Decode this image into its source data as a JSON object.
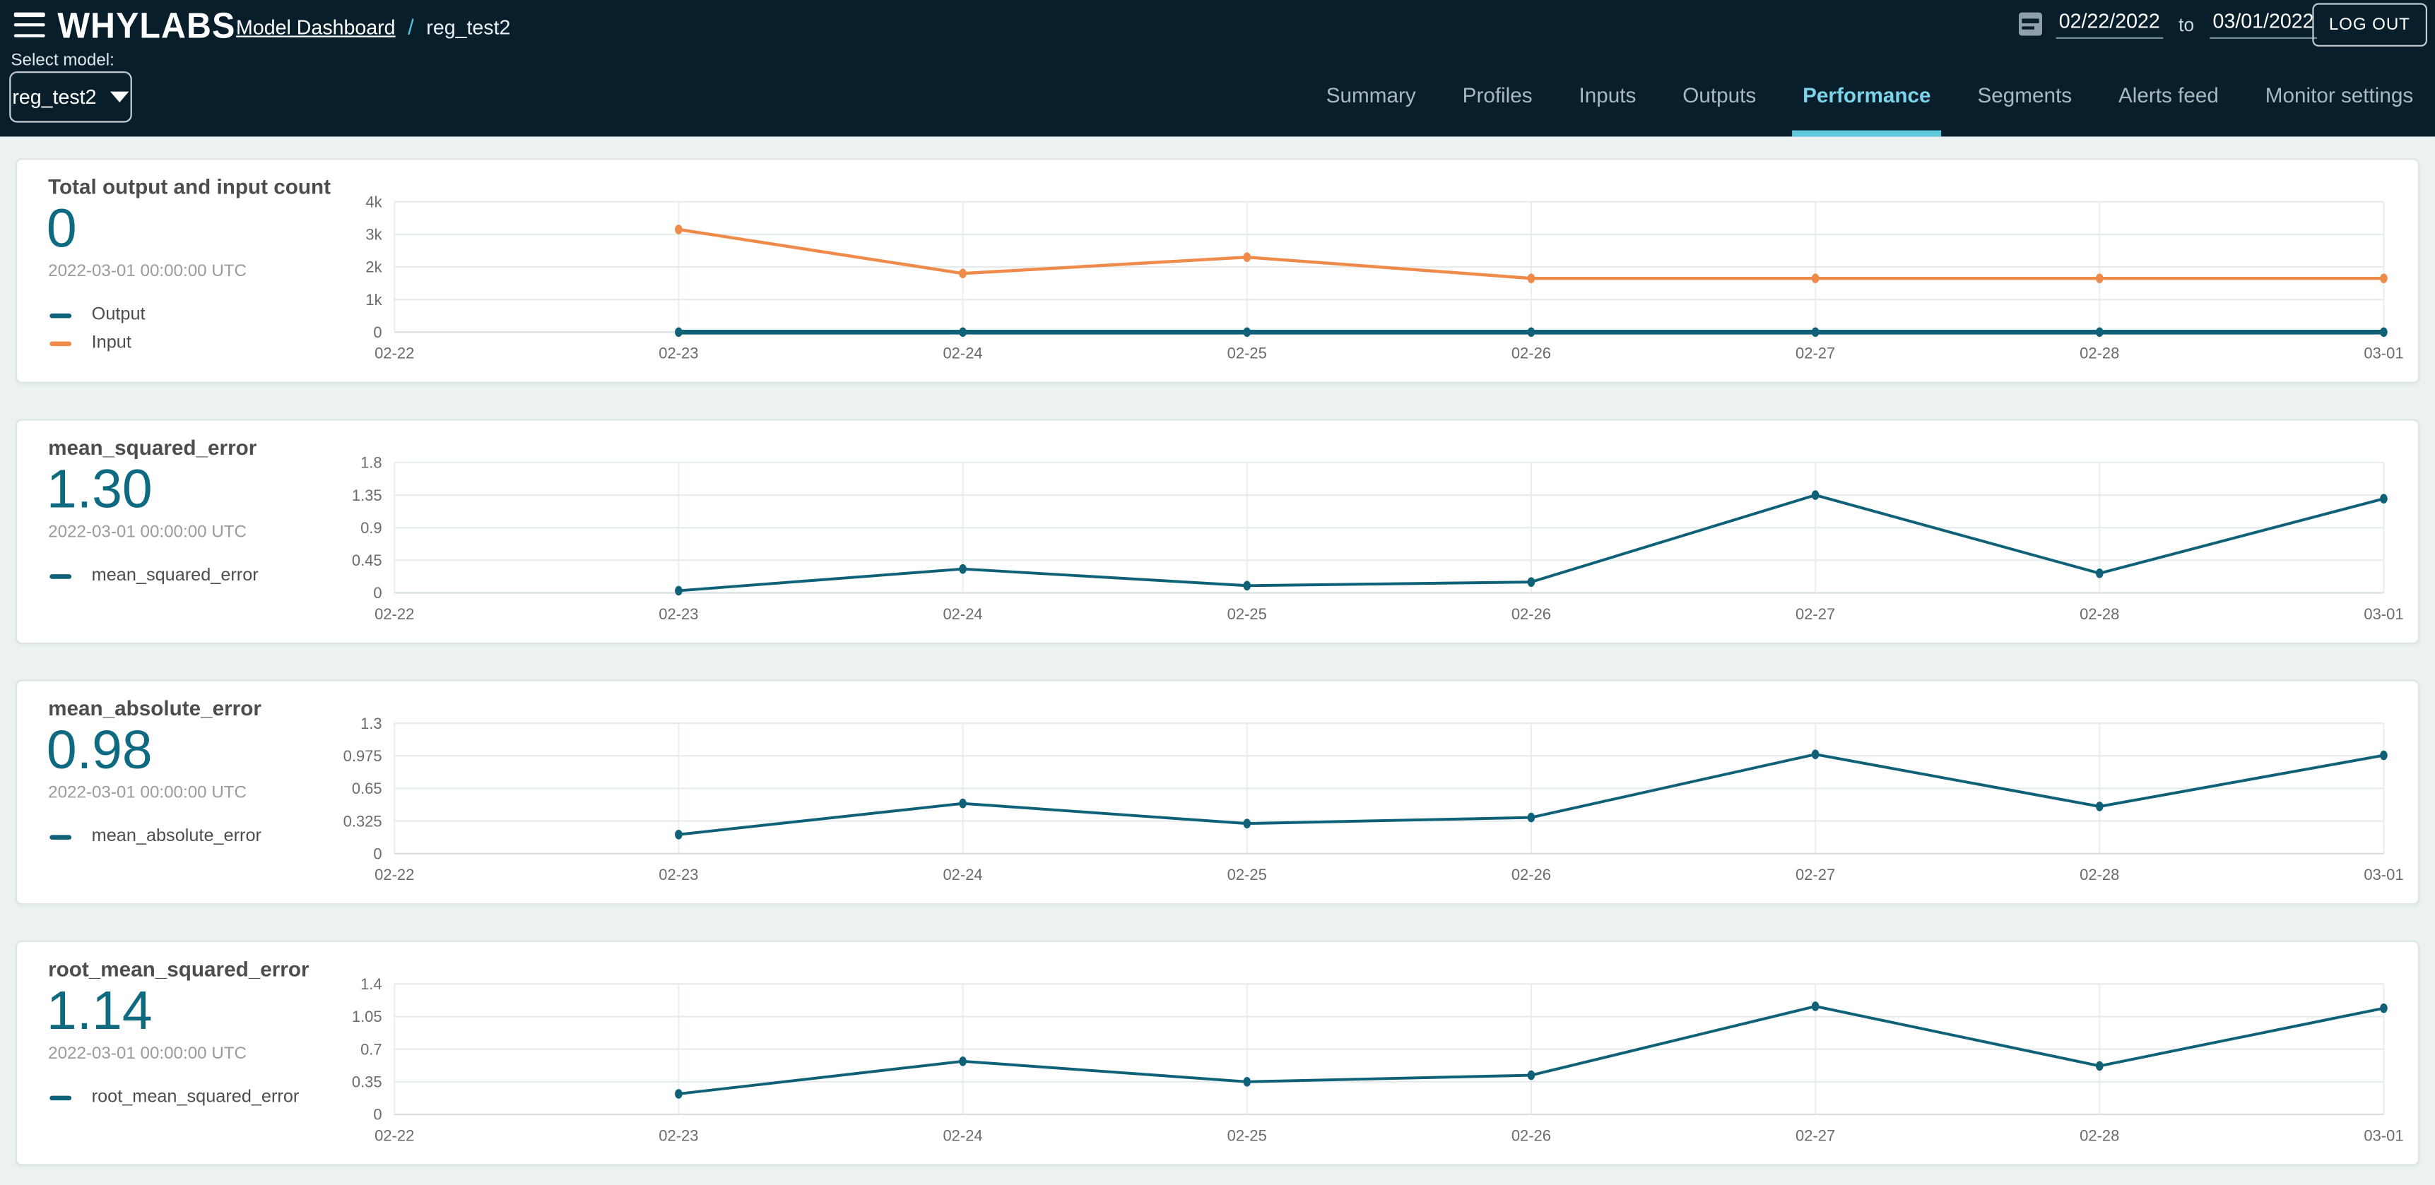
{
  "header": {
    "logo": "WHYLABS",
    "breadcrumb": {
      "link": "Model Dashboard",
      "separator": "/",
      "current": "reg_test2"
    },
    "date_range": {
      "start": "02/22/2022",
      "to_label": "to",
      "end": "03/01/2022"
    },
    "logout_label": "LOG OUT",
    "select_model_label": "Select model:",
    "model_select": {
      "value": "reg_test2"
    },
    "tabs": [
      {
        "label": "Summary",
        "active": false
      },
      {
        "label": "Profiles",
        "active": false
      },
      {
        "label": "Inputs",
        "active": false
      },
      {
        "label": "Outputs",
        "active": false
      },
      {
        "label": "Performance",
        "active": true
      },
      {
        "label": "Segments",
        "active": false
      },
      {
        "label": "Alerts feed",
        "active": false
      },
      {
        "label": "Monitor settings",
        "active": false
      }
    ]
  },
  "colors": {
    "header_bg": "#081f2b",
    "accent_cyan": "#5fc8de",
    "active_tab_text": "#7bd4ea",
    "teal_series": "#0f6177",
    "orange_series": "#ee8a4a",
    "value_teal": "#0e6a80",
    "page_bg": "#ebf2f1",
    "grid_line": "#e5eceb"
  },
  "cards": [
    {
      "title": "Total output and input count",
      "value": "0",
      "timestamp": "2022-03-01 00:00:00 UTC",
      "legend": [
        {
          "label": "Output",
          "color": "#0f6177"
        },
        {
          "label": "Input",
          "color": "#ee8a4a"
        }
      ]
    },
    {
      "title": "mean_squared_error",
      "value": "1.30",
      "timestamp": "2022-03-01 00:00:00 UTC",
      "legend": [
        {
          "label": "mean_squared_error",
          "color": "#0f6177"
        }
      ]
    },
    {
      "title": "mean_absolute_error",
      "value": "0.98",
      "timestamp": "2022-03-01 00:00:00 UTC",
      "legend": [
        {
          "label": "mean_absolute_error",
          "color": "#0f6177"
        }
      ]
    },
    {
      "title": "root_mean_squared_error",
      "value": "1.14",
      "timestamp": "2022-03-01 00:00:00 UTC",
      "legend": [
        {
          "label": "root_mean_squared_error",
          "color": "#0f6177"
        }
      ]
    }
  ],
  "chart_data": [
    {
      "type": "line",
      "title": "Total output and input count",
      "x_categories": [
        "02-22",
        "02-23",
        "02-24",
        "02-25",
        "02-26",
        "02-27",
        "02-28",
        "03-01"
      ],
      "ylim": [
        0,
        4000
      ],
      "yticks": [
        {
          "label": "4k",
          "value": 4000
        },
        {
          "label": "3k",
          "value": 3000
        },
        {
          "label": "2k",
          "value": 2000
        },
        {
          "label": "1k",
          "value": 1000
        },
        {
          "label": "0",
          "value": 0
        }
      ],
      "grid": true,
      "legend_position": "left",
      "series": [
        {
          "name": "Output",
          "color": "#0f6177",
          "stroke_width": 3,
          "values": [
            null,
            0,
            0,
            0,
            0,
            0,
            0,
            0
          ]
        },
        {
          "name": "Input",
          "color": "#ee8a4a",
          "stroke_width": 2,
          "values": [
            null,
            3150,
            1800,
            2300,
            1650,
            1650,
            1650,
            1650
          ]
        }
      ]
    },
    {
      "type": "line",
      "title": "mean_squared_error",
      "x_categories": [
        "02-22",
        "02-23",
        "02-24",
        "02-25",
        "02-26",
        "02-27",
        "02-28",
        "03-01"
      ],
      "ylim": [
        0,
        1.8
      ],
      "yticks": [
        {
          "label": "1.8",
          "value": 1.8
        },
        {
          "label": "1.35",
          "value": 1.35
        },
        {
          "label": "0.9",
          "value": 0.9
        },
        {
          "label": "0.45",
          "value": 0.45
        },
        {
          "label": "0",
          "value": 0
        }
      ],
      "grid": true,
      "legend_position": "left",
      "series": [
        {
          "name": "mean_squared_error",
          "color": "#0f6177",
          "stroke_width": 1.8,
          "values": [
            null,
            0.03,
            0.33,
            0.1,
            0.15,
            1.35,
            0.27,
            1.3
          ]
        }
      ]
    },
    {
      "type": "line",
      "title": "mean_absolute_error",
      "x_categories": [
        "02-22",
        "02-23",
        "02-24",
        "02-25",
        "02-26",
        "02-27",
        "02-28",
        "03-01"
      ],
      "ylim": [
        0,
        1.3
      ],
      "yticks": [
        {
          "label": "1.3",
          "value": 1.3
        },
        {
          "label": "0.975",
          "value": 0.975
        },
        {
          "label": "0.65",
          "value": 0.65
        },
        {
          "label": "0.325",
          "value": 0.325
        },
        {
          "label": "0",
          "value": 0
        }
      ],
      "grid": true,
      "legend_position": "left",
      "series": [
        {
          "name": "mean_absolute_error",
          "color": "#0f6177",
          "stroke_width": 1.8,
          "values": [
            null,
            0.19,
            0.5,
            0.3,
            0.36,
            0.99,
            0.47,
            0.98
          ]
        }
      ]
    },
    {
      "type": "line",
      "title": "root_mean_squared_error",
      "x_categories": [
        "02-22",
        "02-23",
        "02-24",
        "02-25",
        "02-26",
        "02-27",
        "02-28",
        "03-01"
      ],
      "ylim": [
        0,
        1.4
      ],
      "yticks": [
        {
          "label": "1.4",
          "value": 1.4
        },
        {
          "label": "1.05",
          "value": 1.05
        },
        {
          "label": "0.7",
          "value": 0.7
        },
        {
          "label": "0.35",
          "value": 0.35
        },
        {
          "label": "0",
          "value": 0
        }
      ],
      "grid": true,
      "legend_position": "left",
      "series": [
        {
          "name": "root_mean_squared_error",
          "color": "#0f6177",
          "stroke_width": 1.8,
          "values": [
            null,
            0.22,
            0.57,
            0.35,
            0.42,
            1.16,
            0.52,
            1.14
          ]
        }
      ]
    }
  ]
}
